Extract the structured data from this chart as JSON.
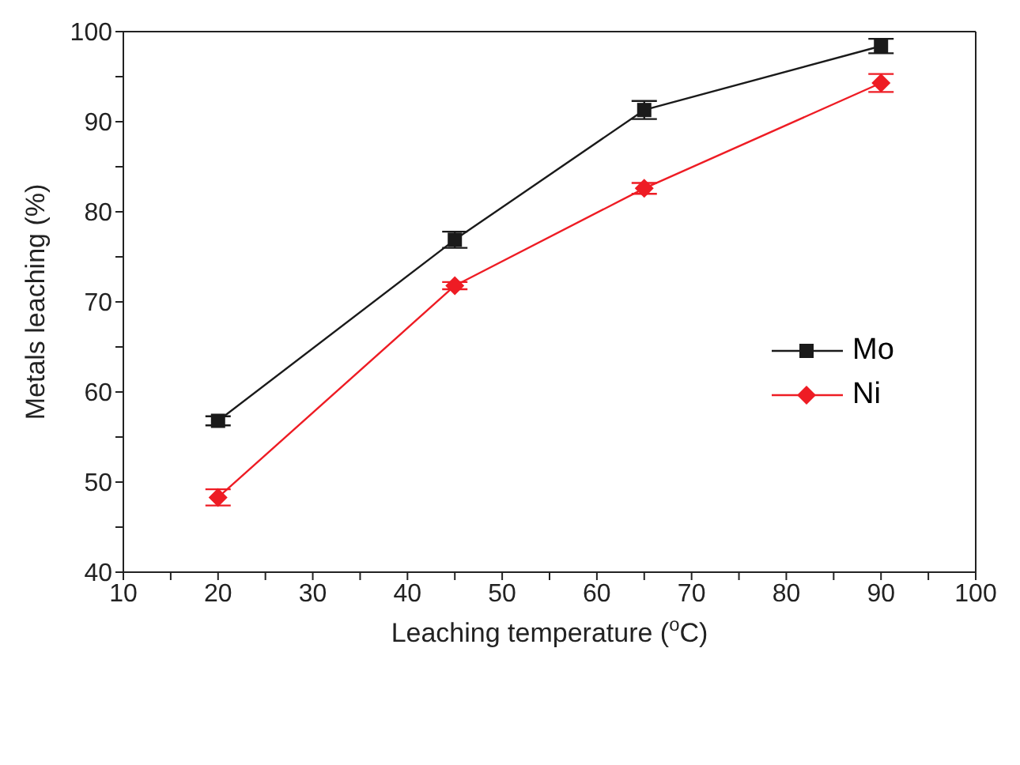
{
  "chart_data": {
    "type": "line",
    "xlabel": "Leaching temperature ($^{o}$C)",
    "ylabel": "Metals leaching (%)",
    "xlim": [
      10,
      100
    ],
    "ylim": [
      40,
      100
    ],
    "xticks": [
      10,
      {
        "value": 15,
        "label": null
      },
      20,
      {
        "value": 25,
        "label": null
      },
      30,
      {
        "value": 35,
        "label": null
      },
      40,
      {
        "value": 45,
        "label": null
      },
      50,
      {
        "value": 55,
        "label": null
      },
      60,
      {
        "value": 65,
        "label": null
      },
      70,
      {
        "value": 75,
        "label": null
      },
      80,
      {
        "value": 85,
        "label": null
      },
      90,
      {
        "value": 95,
        "label": null
      },
      100
    ],
    "yticks": [
      40,
      {
        "value": 45,
        "label": null
      },
      50,
      {
        "value": 55,
        "label": null
      },
      60,
      {
        "value": 65,
        "label": null
      },
      70,
      {
        "value": 75,
        "label": null
      },
      80,
      {
        "value": 85,
        "label": null
      },
      90,
      {
        "value": 95,
        "label": null
      },
      100
    ],
    "x": [
      20,
      45,
      65,
      90
    ],
    "series": [
      {
        "name": "Mo",
        "color": "#1a1a1a",
        "marker": "square",
        "values": [
          56.8,
          76.9,
          91.3,
          98.4
        ],
        "errors": [
          0.5,
          0.9,
          1.0,
          0.8
        ]
      },
      {
        "name": "Ni",
        "color": "#ee1c24",
        "marker": "diamond",
        "values": [
          48.3,
          71.8,
          82.6,
          94.3
        ],
        "errors": [
          0.9,
          0.4,
          0.6,
          1.0
        ]
      }
    ],
    "legend": "right",
    "grid": false,
    "line_style": "solid"
  }
}
